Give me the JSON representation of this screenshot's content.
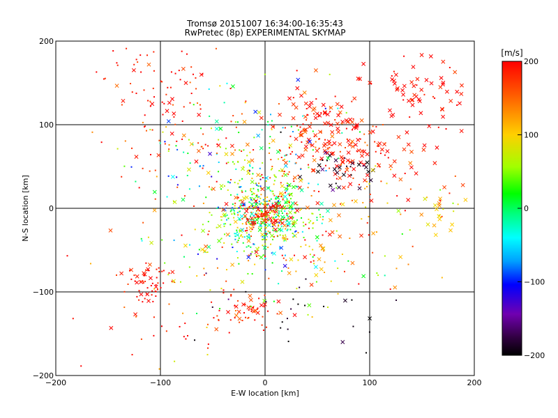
{
  "chart_data": {
    "type": "scatter",
    "title": "Tromsø 20151007 16:34:00-16:35:43",
    "subtitle": "RwPretec (8p) EXPERIMENTAL SKYMAP",
    "xlabel": "E-W location [km]",
    "ylabel": "N-S location [km]",
    "xlim": [
      -200,
      200
    ],
    "ylim": [
      -200,
      200
    ],
    "xticks": [
      -200,
      -100,
      0,
      100,
      200
    ],
    "yticks": [
      -200,
      -100,
      0,
      100,
      200
    ],
    "grid": true,
    "colorbar": {
      "label": "[m/s]",
      "min": -200,
      "max": 200,
      "ticks": [
        200,
        100,
        0,
        -100,
        -200
      ],
      "placement": "right"
    },
    "markers": {
      "dot": "velocity sample (small dot)",
      "cross": "velocity sample (x marker)"
    },
    "clusters": [
      {
        "cx": 55,
        "cy": 95,
        "sx": 22,
        "sy": 25,
        "n": 140,
        "v": 185,
        "vs": 25,
        "crossFrac": 0.6
      },
      {
        "cx": 150,
        "cy": 140,
        "sx": 28,
        "sy": 22,
        "n": 70,
        "v": 195,
        "vs": 15,
        "crossFrac": 0.7
      },
      {
        "cx": 95,
        "cy": 60,
        "sx": 25,
        "sy": 20,
        "n": 60,
        "v": 185,
        "vs": 30,
        "crossFrac": 0.45
      },
      {
        "cx": 70,
        "cy": 45,
        "sx": 18,
        "sy": 15,
        "n": 30,
        "v": -185,
        "vs": 15,
        "crossFrac": 0.7
      },
      {
        "cx": 0,
        "cy": -10,
        "sx": 22,
        "sy": 25,
        "n": 420,
        "v": 15,
        "vs": 65,
        "crossFrac": 0.2
      },
      {
        "cx": 0,
        "cy": -10,
        "sx": 10,
        "sy": 10,
        "n": 80,
        "v": 190,
        "vs": 20,
        "crossFrac": 0.25
      },
      {
        "cx": -20,
        "cy": 60,
        "sx": 45,
        "sy": 45,
        "n": 180,
        "v": 25,
        "vs": 85,
        "crossFrac": 0.2
      },
      {
        "cx": 10,
        "cy": 40,
        "sx": 35,
        "sy": 35,
        "n": 80,
        "v": 180,
        "vs": 30,
        "crossFrac": 0.2
      },
      {
        "cx": -115,
        "cy": -90,
        "sx": 12,
        "sy": 12,
        "n": 60,
        "v": 195,
        "vs": 15,
        "crossFrac": 0.3
      },
      {
        "cx": -20,
        "cy": -125,
        "sx": 15,
        "sy": 10,
        "n": 50,
        "v": 185,
        "vs": 20,
        "crossFrac": 0.3
      },
      {
        "cx": -110,
        "cy": 160,
        "sx": 25,
        "sy": 30,
        "n": 40,
        "v": 195,
        "vs": 15,
        "crossFrac": 0.2
      },
      {
        "cx": 50,
        "cy": -50,
        "sx": 50,
        "sy": 40,
        "n": 120,
        "v": 130,
        "vs": 80,
        "crossFrac": 0.25
      },
      {
        "cx": -50,
        "cy": -50,
        "sx": 45,
        "sy": 40,
        "n": 80,
        "v": 90,
        "vs": 80,
        "crossFrac": 0.2
      },
      {
        "cx": 170,
        "cy": -10,
        "sx": 10,
        "sy": 15,
        "n": 22,
        "v": 110,
        "vs": 30,
        "crossFrac": 0.5
      },
      {
        "cx": -90,
        "cy": 110,
        "sx": 35,
        "sy": 40,
        "n": 70,
        "v": 185,
        "vs": 30,
        "crossFrac": 0.25
      },
      {
        "cx": 120,
        "cy": 20,
        "sx": 40,
        "sy": 25,
        "n": 40,
        "v": 140,
        "vs": 60,
        "crossFrac": 0.4
      },
      {
        "cx": -100,
        "cy": -150,
        "sx": 40,
        "sy": 30,
        "n": 30,
        "v": 180,
        "vs": 40,
        "crossFrac": 0.1
      },
      {
        "cx": 40,
        "cy": -120,
        "sx": 40,
        "sy": 30,
        "n": 25,
        "v": -190,
        "vs": 15,
        "crossFrac": 0.3
      }
    ]
  }
}
